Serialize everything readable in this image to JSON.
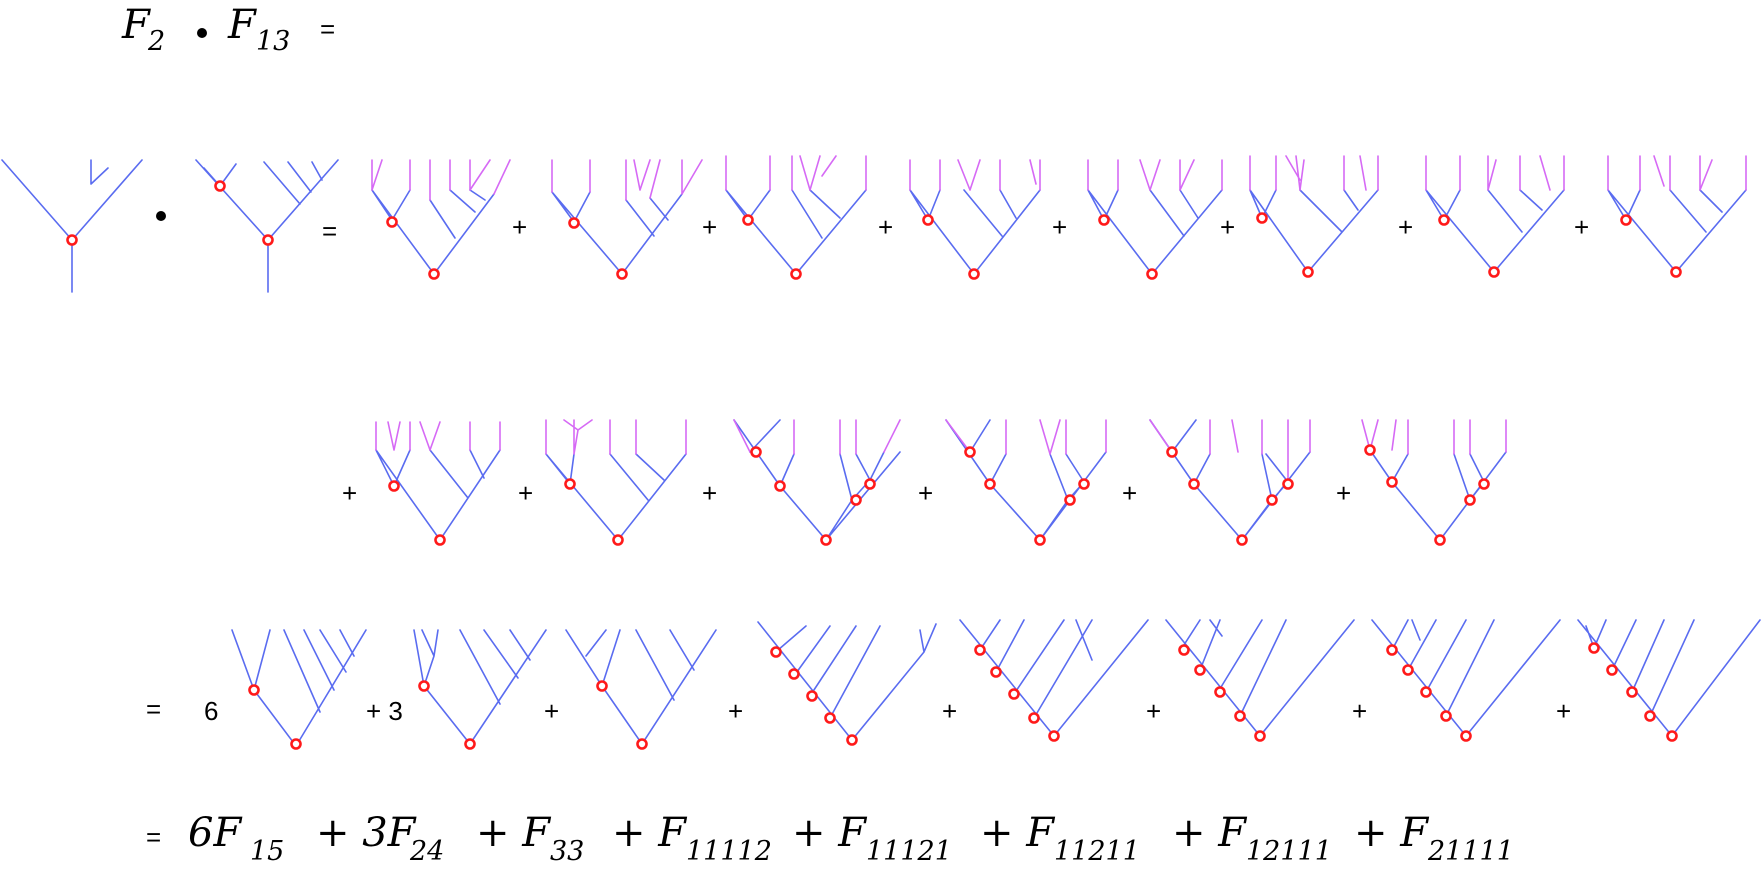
{
  "header": {
    "f1": "F",
    "f1_sub": "2",
    "dot": "•",
    "f2": "F",
    "f2_sub": "13",
    "equals": "="
  },
  "row1": {
    "dot": "•",
    "equals": "=",
    "plus": "+"
  },
  "row2": {
    "plus": "+"
  },
  "row3": {
    "equals": "=",
    "coef_6": "6",
    "coef_3": "+ 3",
    "plus": "+"
  },
  "result": {
    "equals": "=",
    "terms": [
      {
        "text": "6F",
        "sub": "15"
      },
      {
        "text": "+ 3F",
        "sub": "24"
      },
      {
        "text": "+ F",
        "sub": "33"
      },
      {
        "text": "+ F",
        "sub": "11112"
      },
      {
        "text": "+ F",
        "sub": "11121"
      },
      {
        "text": "+ F",
        "sub": "11211"
      },
      {
        "text": "+ F",
        "sub": "12111"
      },
      {
        "text": "+ F",
        "sub": "21111"
      }
    ]
  },
  "colors": {
    "edge_blue": "#5a6cf0",
    "edge_pink": "#d66af5",
    "node_red": "#ff1a1a"
  }
}
